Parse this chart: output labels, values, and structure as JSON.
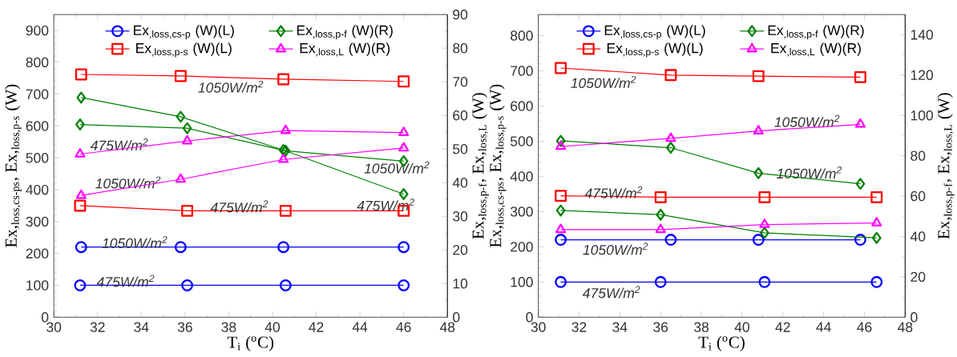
{
  "chart_data": [
    {
      "type": "line",
      "xlabel": "T$_{i}$ ($^{o}$C)",
      "ylabel": "Ex,$_{loss,cs-ps}$, Ex,$_{loss,p-s}$ (W)",
      "y2label": "Ex,$_{loss,p-f}$, Ex,$_{loss,L}$ (W)",
      "xlim": [
        30,
        48
      ],
      "xticks": [
        30,
        32,
        34,
        36,
        38,
        40,
        42,
        44,
        46,
        48
      ],
      "ylim": [
        0,
        950
      ],
      "yticks": [
        0,
        100,
        200,
        300,
        400,
        500,
        600,
        700,
        800,
        900
      ],
      "y2lim": [
        0,
        90
      ],
      "y2ticks": [
        0,
        10,
        20,
        30,
        40,
        50,
        60,
        70,
        80,
        90
      ],
      "legend": "top",
      "line_style": "solid",
      "series": [
        {
          "name": "Ex$_{,loss,cs-p}$ (W)(L)",
          "color": "#0000ff",
          "marker": "circle",
          "x": [
            31.25,
            35.8,
            40.5,
            46.0
          ],
          "values": [
            220,
            220,
            220,
            220
          ]
        },
        {
          "name": "Ex$_{,loss,p-f}$ (W)(R)",
          "color": "#008000",
          "marker": "diamond",
          "axis": "y2",
          "x": [
            31.2,
            36.1,
            40.6,
            46.0
          ],
          "values": [
            57.3,
            56.2,
            49.5,
            46.4
          ]
        },
        {
          "name": "Ex$_{,loss,p-s}$ (W)(L)",
          "color": "#ff0000",
          "marker": "square",
          "x": [
            31.25,
            35.8,
            40.5,
            46.0
          ],
          "values": [
            762,
            757,
            747,
            740
          ]
        },
        {
          "name": "Ex$_{,loss,L}$ (W)(R)",
          "color": "#ff00ff",
          "marker": "triangle",
          "axis": "y2",
          "x": [
            31.2,
            36.1,
            40.6,
            46.0
          ],
          "values": [
            48.5,
            52.4,
            55.5,
            54.9
          ]
        },
        {
          "color": "#0000ff",
          "marker": "circle",
          "x": [
            31.2,
            36.1,
            40.6,
            46.0
          ],
          "values": [
            100,
            100,
            100,
            100
          ]
        },
        {
          "color": "#008000",
          "marker": "diamond",
          "axis": "y2",
          "x": [
            31.25,
            35.8,
            40.5,
            46.0
          ],
          "values": [
            65.3,
            59.6,
            49.7,
            36.6
          ]
        },
        {
          "color": "#ff0000",
          "marker": "square",
          "x": [
            31.2,
            36.1,
            40.6,
            46.0
          ],
          "values": [
            350,
            334,
            334,
            334
          ]
        },
        {
          "color": "#ff00ff",
          "marker": "triangle",
          "axis": "y2",
          "x": [
            31.25,
            35.8,
            40.5,
            46.0
          ],
          "values": [
            36.2,
            41.0,
            46.9,
            50.3
          ]
        }
      ],
      "annotations": [
        "1050W/m$^{2}$",
        "475W/m$^{2}$",
        "1050W/m$^{2}$",
        "1050W/m$^{2}$",
        "475W/m$^{2}$",
        "475W/m$^{2}$",
        "1050W/m$^{2}$",
        "475W/m$^{2}$"
      ]
    },
    {
      "type": "line",
      "xlabel": "T$_{i}$ ($^{o}$C)",
      "ylabel": "Ex,$_{loss,cs-ps}$, Ex,$_{loss,p-s}$ (W)",
      "y2label": "Ex,$_{loss,p-f}$, Ex,$_{loss,L}$ (W)",
      "xlim": [
        30,
        48
      ],
      "xticks": [
        30,
        32,
        34,
        36,
        38,
        40,
        42,
        44,
        46,
        48
      ],
      "ylim": [
        0,
        860
      ],
      "yticks": [
        0,
        100,
        200,
        300,
        400,
        500,
        600,
        700,
        800
      ],
      "y2lim": [
        0,
        150
      ],
      "y2ticks": [
        0,
        20,
        40,
        60,
        80,
        100,
        120,
        140
      ],
      "legend": "top",
      "line_style": "solid",
      "series": [
        {
          "name": "Ex$_{,loss,cs-p}$ (W)(L)",
          "color": "#0000ff",
          "marker": "circle",
          "x": [
            31.1,
            36.5,
            40.8,
            45.8
          ],
          "values": [
            220,
            220,
            220,
            220
          ]
        },
        {
          "name": "Ex$_{,loss,p-f}$ (W)(R)",
          "color": "#008000",
          "marker": "diamond",
          "axis": "y2",
          "x": [
            31.1,
            36.5,
            40.8,
            45.8
          ],
          "values": [
            87.4,
            84.0,
            71.4,
            66.1
          ]
        },
        {
          "name": "Ex$_{,loss,p-s}$ (W)(L)",
          "color": "#ff0000",
          "marker": "square",
          "x": [
            31.1,
            36.5,
            40.8,
            45.8
          ],
          "values": [
            708,
            688,
            685,
            682
          ]
        },
        {
          "name": "Ex$_{,loss,L}$ (W)(R)",
          "color": "#ff00ff",
          "marker": "triangle",
          "axis": "y2",
          "x": [
            31.1,
            36.5,
            40.8,
            45.8
          ],
          "values": [
            84.6,
            88.6,
            92.3,
            95.6
          ]
        },
        {
          "color": "#0000ff",
          "marker": "circle",
          "x": [
            31.1,
            36.0,
            41.1,
            46.6
          ],
          "values": [
            100,
            100,
            100,
            100
          ]
        },
        {
          "color": "#008000",
          "marker": "diamond",
          "axis": "y2",
          "x": [
            31.1,
            36.0,
            41.1,
            46.6
          ],
          "values": [
            52.9,
            50.8,
            41.8,
            39.3
          ]
        },
        {
          "color": "#ff0000",
          "marker": "square",
          "x": [
            31.1,
            36.0,
            41.1,
            46.6
          ],
          "values": [
            345,
            341,
            341,
            341
          ]
        },
        {
          "color": "#ff00ff",
          "marker": "triangle",
          "axis": "y2",
          "x": [
            31.1,
            36.0,
            41.1,
            46.6
          ],
          "values": [
            43.4,
            43.4,
            45.9,
            46.7
          ]
        }
      ],
      "annotations": [
        "1050W/m$^{2}$",
        "1050W/m$^{2}$",
        "1050W/m$^{2}$",
        "475W/m$^{2}$",
        "1050W/m$^{2}$",
        "475W/m$^{2}$"
      ]
    }
  ]
}
